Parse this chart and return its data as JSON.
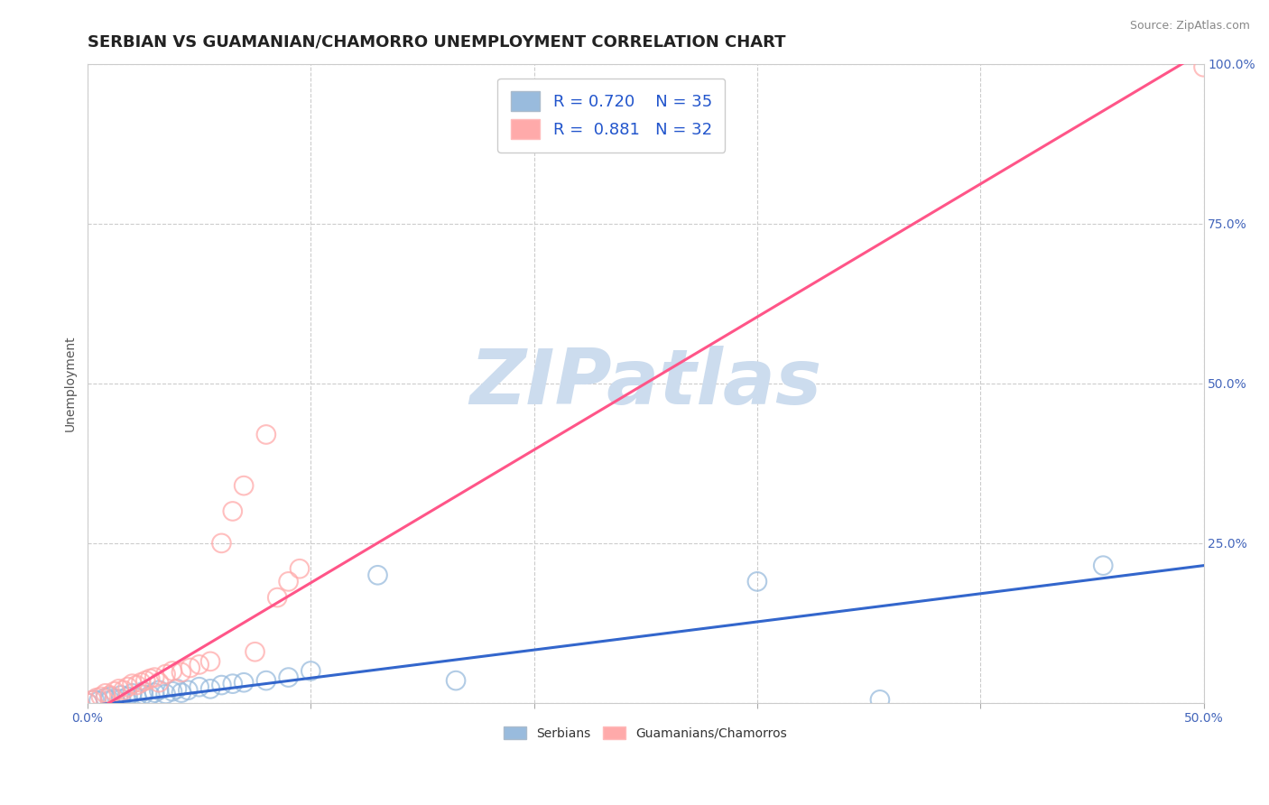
{
  "title": "SERBIAN VS GUAMANIAN/CHAMORRO UNEMPLOYMENT CORRELATION CHART",
  "source_text": "Source: ZipAtlas.com",
  "ylabel": "Unemployment",
  "xlim": [
    0.0,
    0.5
  ],
  "ylim": [
    0.0,
    1.0
  ],
  "xticks": [
    0.0,
    0.1,
    0.2,
    0.3,
    0.4,
    0.5
  ],
  "yticks": [
    0.0,
    0.25,
    0.5,
    0.75,
    1.0
  ],
  "xtick_labels": [
    "0.0%",
    "",
    "",
    "",
    "",
    "50.0%"
  ],
  "ytick_labels": [
    "",
    "25.0%",
    "50.0%",
    "75.0%",
    "100.0%"
  ],
  "background_color": "#ffffff",
  "watermark_text": "ZIPatlas",
  "watermark_color": "#ccdcee",
  "serbian_R": 0.72,
  "serbian_N": 35,
  "guam_R": 0.881,
  "guam_N": 32,
  "serbian_color": "#99bbdd",
  "guam_color": "#ffaaaa",
  "serbian_line_color": "#3366cc",
  "guam_line_color": "#ff5588",
  "serbian_line_x0": 0.0,
  "serbian_line_y0": -0.005,
  "serbian_line_x1": 0.5,
  "serbian_line_y1": 0.215,
  "guam_line_x0": 0.0,
  "guam_line_y0": -0.02,
  "guam_line_x1": 0.5,
  "guam_line_y1": 1.02,
  "serbian_x": [
    0.0,
    0.003,
    0.005,
    0.008,
    0.01,
    0.01,
    0.012,
    0.015,
    0.015,
    0.018,
    0.02,
    0.022,
    0.025,
    0.025,
    0.028,
    0.03,
    0.032,
    0.035,
    0.038,
    0.04,
    0.042,
    0.045,
    0.05,
    0.055,
    0.06,
    0.065,
    0.07,
    0.08,
    0.09,
    0.1,
    0.13,
    0.165,
    0.3,
    0.355,
    0.455
  ],
  "serbian_y": [
    0.0,
    0.005,
    0.003,
    0.008,
    0.004,
    0.01,
    0.007,
    0.012,
    0.006,
    0.01,
    0.015,
    0.008,
    0.013,
    0.018,
    0.012,
    0.016,
    0.02,
    0.014,
    0.018,
    0.022,
    0.016,
    0.02,
    0.025,
    0.022,
    0.028,
    0.03,
    0.032,
    0.035,
    0.04,
    0.05,
    0.2,
    0.035,
    0.19,
    0.005,
    0.215
  ],
  "guam_x": [
    0.0,
    0.002,
    0.004,
    0.006,
    0.008,
    0.01,
    0.012,
    0.014,
    0.016,
    0.018,
    0.02,
    0.022,
    0.024,
    0.026,
    0.028,
    0.03,
    0.032,
    0.035,
    0.038,
    0.042,
    0.046,
    0.05,
    0.055,
    0.06,
    0.065,
    0.07,
    0.075,
    0.08,
    0.085,
    0.09,
    0.095,
    0.5
  ],
  "guam_y": [
    0.0,
    0.004,
    0.008,
    0.01,
    0.015,
    0.012,
    0.018,
    0.022,
    0.02,
    0.025,
    0.03,
    0.028,
    0.032,
    0.035,
    0.038,
    0.04,
    0.032,
    0.045,
    0.05,
    0.048,
    0.055,
    0.06,
    0.065,
    0.25,
    0.3,
    0.34,
    0.08,
    0.42,
    0.165,
    0.19,
    0.21,
    0.995
  ],
  "grid_color": "#cccccc",
  "grid_linestyle": "--",
  "title_fontsize": 13,
  "axis_label_fontsize": 10,
  "tick_fontsize": 10,
  "legend_fontsize": 13
}
